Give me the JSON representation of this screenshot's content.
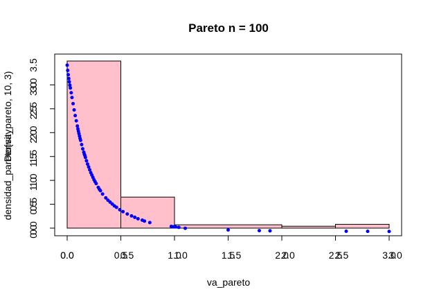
{
  "chart_data": {
    "type": "bar",
    "title": "Pareto n = 100",
    "xlabel": "va_pareto",
    "ylabel_1": "densidad_pareto(va_pareto, 10, 3)",
    "ylabel_2": "Density",
    "xlim_bottom": [
      0,
      3
    ],
    "xlim_top": [
      0,
      3
    ],
    "ylim_left": [
      0,
      3.5
    ],
    "ylim_right": [
      0,
      3.5
    ],
    "x_ticks_bottom": [
      "0.0",
      "0.5",
      "1.0",
      "1.5",
      "2.0",
      "2.5",
      "3.0"
    ],
    "x_ticks_top": [
      "0.0",
      "0.5",
      "1.0",
      "1.5",
      "2.0",
      "2.5",
      "3.0"
    ],
    "y_ticks_left": [
      "0.0",
      "0.5",
      "1.0",
      "1.5",
      "2.0",
      "2.5",
      "3.0"
    ],
    "y_ticks_right": [
      "0.0",
      "0.5",
      "1.0",
      "1.5",
      "2.0",
      "2.5",
      "3.0",
      "3.5"
    ],
    "histogram": {
      "bins": [
        {
          "from": 0.0,
          "to": 0.5,
          "density": 3.5
        },
        {
          "from": 0.5,
          "to": 1.0,
          "density": 0.65
        },
        {
          "from": 1.0,
          "to": 2.0,
          "density": 0.07
        },
        {
          "from": 2.0,
          "to": 2.5,
          "density": 0.04
        },
        {
          "from": 2.5,
          "to": 3.0,
          "density": 0.08
        }
      ],
      "fill": "#FFC0CB",
      "stroke": "#000000"
    },
    "points": {
      "color": "#0000FF",
      "x": [
        0.0,
        0.005,
        0.01,
        0.015,
        0.02,
        0.025,
        0.03,
        0.038,
        0.045,
        0.055,
        0.065,
        0.075,
        0.085,
        0.095,
        0.1,
        0.105,
        0.11,
        0.115,
        0.12,
        0.125,
        0.135,
        0.145,
        0.155,
        0.16,
        0.165,
        0.17,
        0.18,
        0.19,
        0.2,
        0.21,
        0.22,
        0.23,
        0.24,
        0.25,
        0.26,
        0.27,
        0.29,
        0.3,
        0.31,
        0.33,
        0.36,
        0.38,
        0.4,
        0.42,
        0.44,
        0.46,
        0.49,
        0.52,
        0.56,
        0.6,
        0.63,
        0.66,
        0.7,
        0.72,
        0.77,
        0.97,
        0.99,
        1.01,
        1.04,
        1.1,
        1.5,
        1.79,
        1.89,
        2.6,
        2.8,
        3.0
      ],
      "y": [
        3.5,
        3.39,
        3.3,
        3.22,
        3.15,
        3.08,
        3.02,
        2.92,
        2.82,
        2.69,
        2.56,
        2.44,
        2.33,
        2.22,
        2.16,
        2.11,
        2.06,
        2.01,
        1.96,
        1.92,
        1.83,
        1.74,
        1.67,
        1.63,
        1.6,
        1.56,
        1.49,
        1.42,
        1.36,
        1.3,
        1.24,
        1.19,
        1.14,
        1.09,
        1.05,
        1.01,
        0.93,
        0.89,
        0.86,
        0.79,
        0.71,
        0.66,
        0.62,
        0.58,
        0.54,
        0.51,
        0.46,
        0.42,
        0.37,
        0.33,
        0.3,
        0.27,
        0.24,
        0.22,
        0.19,
        0.11,
        0.1,
        0.1,
        0.09,
        0.07,
        0.035,
        0.02,
        0.016,
        0.007,
        0.005,
        0.004
      ]
    },
    "grid": false,
    "legend": "none"
  }
}
